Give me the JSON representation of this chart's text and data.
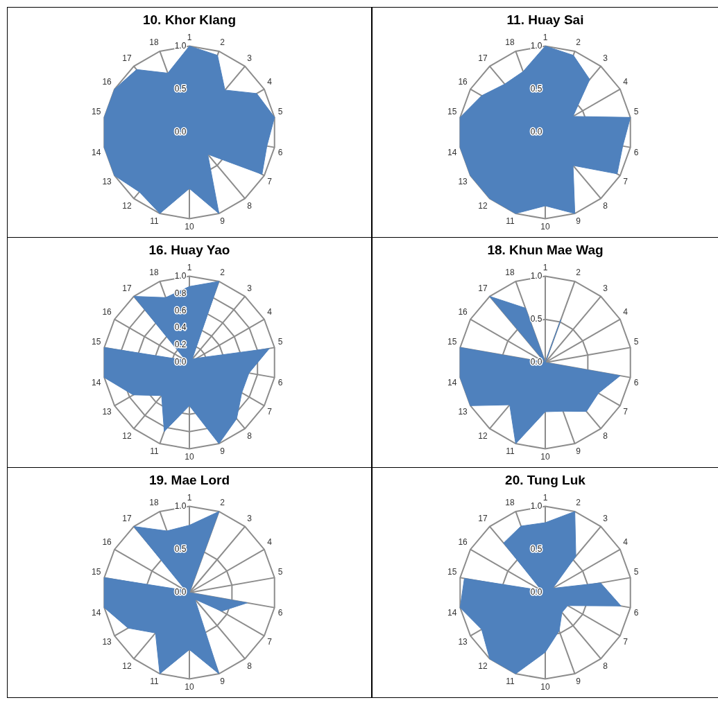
{
  "chart_data": [
    {
      "type": "radar",
      "title": "10. Khor Klang",
      "categories": [
        "1",
        "2",
        "3",
        "4",
        "5",
        "6",
        "7",
        "8",
        "9",
        "10",
        "11",
        "12",
        "13",
        "14",
        "15",
        "16",
        "17",
        "18"
      ],
      "series": [
        {
          "color": "#4f81bd",
          "values": [
            1.0,
            0.95,
            0.64,
            0.9,
            1.0,
            0.91,
            0.97,
            0.33,
            1.0,
            0.65,
            1.0,
            0.9,
            1.0,
            1.0,
            1.0,
            1.0,
            0.95,
            0.73
          ]
        }
      ],
      "ylim": [
        0,
        1
      ],
      "yticks": [
        {
          "value": 0,
          "label": "0.0"
        },
        {
          "value": 0.5,
          "label": "0.5"
        },
        {
          "value": 1,
          "label": "1.0"
        }
      ],
      "grid": true,
      "legend": false
    },
    {
      "type": "radar",
      "title": "11.  Huay Sai",
      "categories": [
        "1",
        "2",
        "3",
        "4",
        "5",
        "6",
        "7",
        "8",
        "9",
        "10",
        "11",
        "12",
        "13",
        "14",
        "15",
        "16",
        "17",
        "18"
      ],
      "series": [
        {
          "color": "#4f81bd",
          "values": [
            1.0,
            0.95,
            0.8,
            0.37,
            1.0,
            0.91,
            0.96,
            0.5,
            1.0,
            0.85,
            1.0,
            1.0,
            1.0,
            1.0,
            1.0,
            0.85,
            0.73,
            0.75
          ]
        }
      ],
      "ylim": [
        0,
        1
      ],
      "yticks": [
        {
          "value": 0,
          "label": "0.0"
        },
        {
          "value": 0.5,
          "label": "0.5"
        },
        {
          "value": 1,
          "label": "1.0"
        }
      ],
      "grid": true,
      "legend": false
    },
    {
      "type": "radar",
      "title": "16.  Huay Yao",
      "categories": [
        "1",
        "2",
        "3",
        "4",
        "5",
        "6",
        "7",
        "8",
        "9",
        "10",
        "11",
        "12",
        "13",
        "14",
        "15",
        "16",
        "17",
        "18"
      ],
      "series": [
        {
          "color": "#4f81bd",
          "values": [
            0.88,
            1.0,
            0.05,
            0.1,
            0.94,
            0.7,
            0.7,
            0.85,
            1.0,
            0.5,
            0.85,
            0.5,
            0.75,
            1.0,
            1.0,
            0.05,
            1.0,
            0.8
          ]
        }
      ],
      "ylim": [
        0,
        1
      ],
      "yticks": [
        {
          "value": 0,
          "label": "0.0"
        },
        {
          "value": 0.2,
          "label": "0.2"
        },
        {
          "value": 0.4,
          "label": "0.4"
        },
        {
          "value": 0.6,
          "label": "0.6"
        },
        {
          "value": 0.8,
          "label": "0.8"
        },
        {
          "value": 1,
          "label": "1.0"
        }
      ],
      "grid": true,
      "legend": false
    },
    {
      "type": "radar",
      "title": "18. Khun Mae Wag",
      "categories": [
        "1",
        "2",
        "3",
        "4",
        "5",
        "6",
        "7",
        "8",
        "9",
        "10",
        "11",
        "12",
        "13",
        "14",
        "15",
        "16",
        "17",
        "18"
      ],
      "series": [
        {
          "color": "#4f81bd",
          "values": [
            0.0,
            0.53,
            0.0,
            0.0,
            0.0,
            0.88,
            0.71,
            0.74,
            0.6,
            0.57,
            1.0,
            0.64,
            1.0,
            1.0,
            1.0,
            0.0,
            1.0,
            0.67
          ]
        }
      ],
      "ylim": [
        0,
        1
      ],
      "yticks": [
        {
          "value": 0,
          "label": "0.0"
        },
        {
          "value": 0.5,
          "label": "0.5"
        },
        {
          "value": 1,
          "label": "1.0"
        }
      ],
      "grid": true,
      "legend": false
    },
    {
      "type": "radar",
      "title": "19. Mae Lord",
      "categories": [
        "1",
        "2",
        "3",
        "4",
        "5",
        "6",
        "7",
        "8",
        "9",
        "10",
        "11",
        "12",
        "13",
        "14",
        "15",
        "16",
        "17",
        "18"
      ],
      "series": [
        {
          "color": "#4f81bd",
          "values": [
            0.78,
            1.0,
            0.0,
            0.0,
            0.0,
            0.68,
            0.43,
            0.1,
            1.0,
            0.66,
            1.0,
            0.61,
            0.82,
            1.0,
            1.0,
            0.05,
            1.0,
            0.76
          ]
        }
      ],
      "ylim": [
        0,
        1
      ],
      "yticks": [
        {
          "value": 0,
          "label": "0.0"
        },
        {
          "value": 0.5,
          "label": "0.5"
        },
        {
          "value": 1,
          "label": "1.0"
        }
      ],
      "grid": true,
      "legend": false
    },
    {
      "type": "radar",
      "title": "20. Tung Luk",
      "categories": [
        "1",
        "2",
        "3",
        "4",
        "5",
        "6",
        "7",
        "8",
        "9",
        "10",
        "11",
        "12",
        "13",
        "14",
        "15",
        "16",
        "17",
        "18"
      ],
      "series": [
        {
          "color": "#4f81bd",
          "values": [
            0.81,
            1.0,
            0.55,
            0.1,
            0.65,
            0.89,
            0.3,
            0.3,
            0.47,
            0.69,
            1.0,
            1.0,
            0.85,
            1.0,
            0.95,
            0.05,
            0.75,
            0.82
          ]
        }
      ],
      "ylim": [
        0,
        1
      ],
      "yticks": [
        {
          "value": 0,
          "label": "0.0"
        },
        {
          "value": 0.5,
          "label": "0.5"
        },
        {
          "value": 1,
          "label": "1.0"
        }
      ],
      "grid": true,
      "legend": false
    }
  ]
}
